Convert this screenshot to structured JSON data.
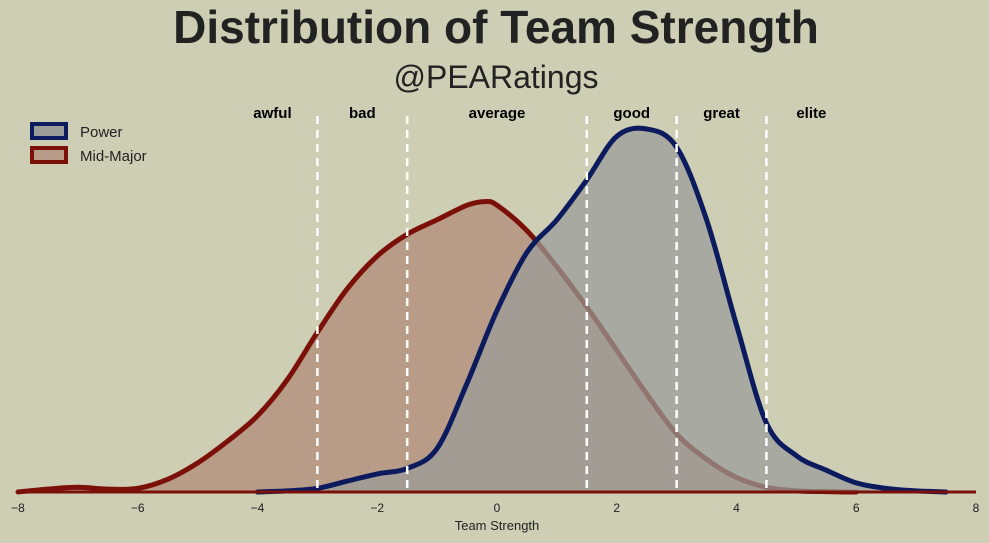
{
  "chart_data": {
    "type": "area",
    "title": "Distribution of Team Strength",
    "subtitle": "@PEARatings",
    "xlabel": "Team Strength",
    "ylabel": "",
    "xlim": [
      -8,
      8
    ],
    "ylim": [
      0,
      1
    ],
    "xticks": [
      -8,
      -6,
      -4,
      -2,
      0,
      2,
      4,
      6,
      8
    ],
    "xtick_labels": [
      "−8",
      "−6",
      "−4",
      "−2",
      "0",
      "2",
      "4",
      "6",
      "8"
    ],
    "grid": false,
    "legend_position": "top-left",
    "thresholds": [
      -3,
      -1.5,
      1.5,
      3,
      4.5
    ],
    "regions": [
      {
        "label": "awful",
        "x": -3.75
      },
      {
        "label": "bad",
        "x": -2.25
      },
      {
        "label": "average",
        "x": 0
      },
      {
        "label": "good",
        "x": 2.25
      },
      {
        "label": "great",
        "x": 3.75
      },
      {
        "label": "elite",
        "x": 5.25
      }
    ],
    "series": [
      {
        "name": "Mid-Major",
        "line_color": "#7a1007",
        "fill_color": "#b99c87",
        "x": [
          -8,
          -7.5,
          -7,
          -6.5,
          -6,
          -5.5,
          -5,
          -4.5,
          -4,
          -3.5,
          -3,
          -2.5,
          -2,
          -1.5,
          -1,
          -0.5,
          -0.2,
          0,
          0.5,
          1,
          1.5,
          2,
          2.5,
          3,
          3.5,
          4,
          4.5,
          5,
          5.5,
          5.8,
          6
        ],
        "y": [
          0,
          0.008,
          0.013,
          0.008,
          0.01,
          0.035,
          0.08,
          0.14,
          0.21,
          0.31,
          0.44,
          0.56,
          0.65,
          0.71,
          0.75,
          0.79,
          0.8,
          0.79,
          0.72,
          0.62,
          0.51,
          0.39,
          0.27,
          0.16,
          0.09,
          0.04,
          0.013,
          0.003,
          0.001,
          0,
          0
        ]
      },
      {
        "name": "Power",
        "line_color": "#0c1a5e",
        "fill_color": "#9a9d9a",
        "x": [
          -4,
          -3.5,
          -3,
          -2.5,
          -2,
          -1.5,
          -1,
          -0.5,
          0,
          0.5,
          1,
          1.5,
          2,
          2.5,
          3,
          3.5,
          4,
          4.5,
          5,
          5.5,
          6,
          6.5,
          7,
          7.5
        ],
        "y": [
          0,
          0.003,
          0.01,
          0.03,
          0.05,
          0.065,
          0.12,
          0.3,
          0.5,
          0.66,
          0.75,
          0.86,
          0.98,
          1.0,
          0.95,
          0.75,
          0.46,
          0.19,
          0.1,
          0.06,
          0.025,
          0.01,
          0.003,
          0
        ]
      }
    ]
  }
}
